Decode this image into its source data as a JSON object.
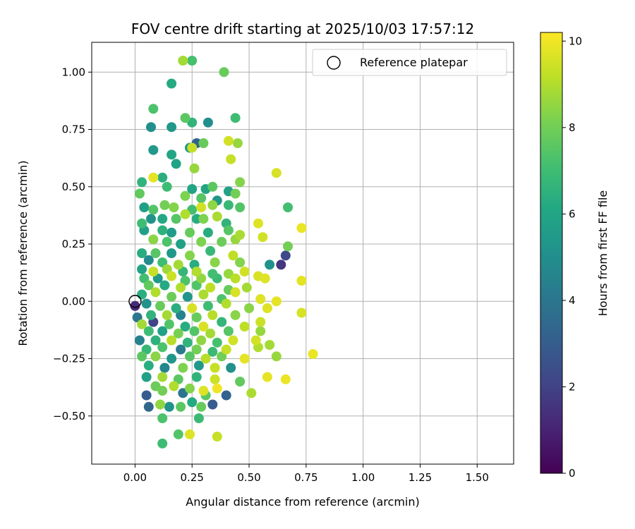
{
  "chart_data": {
    "type": "scatter",
    "title": "FOV centre drift starting at 2025/10/03 17:57:12",
    "xlabel": "Angular distance from reference (arcmin)",
    "ylabel": "Rotation from reference (arcmin)",
    "xlim": [
      -0.19,
      1.66
    ],
    "ylim": [
      -0.71,
      1.13
    ],
    "xticks": [
      0.0,
      0.25,
      0.5,
      0.75,
      1.0,
      1.25,
      1.5
    ],
    "xtick_labels": [
      "0.00",
      "0.25",
      "0.50",
      "0.75",
      "1.00",
      "1.25",
      "1.50"
    ],
    "yticks": [
      -0.5,
      -0.25,
      0.0,
      0.25,
      0.5,
      0.75,
      1.0
    ],
    "ytick_labels": [
      "−0.50",
      "−0.25",
      "0.00",
      "0.25",
      "0.50",
      "0.75",
      "1.00"
    ],
    "grid": true,
    "legend": {
      "position": "top-right",
      "entries": [
        "Reference platepar"
      ]
    },
    "reference_point": {
      "x": 0.0,
      "y": 0.0,
      "label": "Reference platepar"
    },
    "colorbar": {
      "label": "Hours from first FF file",
      "range": [
        0,
        10.2
      ],
      "ticks": [
        0,
        2,
        4,
        6,
        8,
        10
      ],
      "tick_labels": [
        "0",
        "2",
        "4",
        "6",
        "8",
        "10"
      ],
      "colormap": "viridis"
    },
    "point_columns": [
      "x",
      "y",
      "hours"
    ],
    "points": [
      [
        0.21,
        1.05,
        8.8
      ],
      [
        0.25,
        1.05,
        7.2
      ],
      [
        0.39,
        1.0,
        7.8
      ],
      [
        0.16,
        0.95,
        6.2
      ],
      [
        0.08,
        0.84,
        7.3
      ],
      [
        0.22,
        0.8,
        7.6
      ],
      [
        0.44,
        0.8,
        7.0
      ],
      [
        0.25,
        0.78,
        6.6
      ],
      [
        0.32,
        0.78,
        5.0
      ],
      [
        0.07,
        0.76,
        5.0
      ],
      [
        0.16,
        0.76,
        5.4
      ],
      [
        0.27,
        0.69,
        3.2
      ],
      [
        0.3,
        0.69,
        7.8
      ],
      [
        0.41,
        0.7,
        9.5
      ],
      [
        0.45,
        0.69,
        8.6
      ],
      [
        0.24,
        0.67,
        5.3
      ],
      [
        0.25,
        0.67,
        9.3
      ],
      [
        0.08,
        0.66,
        5.4
      ],
      [
        0.16,
        0.64,
        6.0
      ],
      [
        0.42,
        0.62,
        9.3
      ],
      [
        0.18,
        0.6,
        5.9
      ],
      [
        0.26,
        0.58,
        8.6
      ],
      [
        0.62,
        0.56,
        9.6
      ],
      [
        0.08,
        0.54,
        9.8
      ],
      [
        0.12,
        0.54,
        6.4
      ],
      [
        0.03,
        0.52,
        6.6
      ],
      [
        0.14,
        0.5,
        7.0
      ],
      [
        0.25,
        0.49,
        6.0
      ],
      [
        0.31,
        0.49,
        6.0
      ],
      [
        0.34,
        0.5,
        7.6
      ],
      [
        0.46,
        0.52,
        8.3
      ],
      [
        0.41,
        0.48,
        5.8
      ],
      [
        0.44,
        0.47,
        8.0
      ],
      [
        0.02,
        0.47,
        7.7
      ],
      [
        0.22,
        0.46,
        8.2
      ],
      [
        0.29,
        0.45,
        7.5
      ],
      [
        0.36,
        0.44,
        5.3
      ],
      [
        0.04,
        0.41,
        5.7
      ],
      [
        0.08,
        0.4,
        7.4
      ],
      [
        0.13,
        0.42,
        8.0
      ],
      [
        0.17,
        0.41,
        8.3
      ],
      [
        0.25,
        0.4,
        7.1
      ],
      [
        0.29,
        0.41,
        9.5
      ],
      [
        0.34,
        0.42,
        8.5
      ],
      [
        0.41,
        0.42,
        6.8
      ],
      [
        0.46,
        0.41,
        7.4
      ],
      [
        0.67,
        0.41,
        7.1
      ],
      [
        0.03,
        0.34,
        7.0
      ],
      [
        0.07,
        0.36,
        5.2
      ],
      [
        0.12,
        0.36,
        6.1
      ],
      [
        0.18,
        0.36,
        7.5
      ],
      [
        0.22,
        0.38,
        9.0
      ],
      [
        0.27,
        0.36,
        6.3
      ],
      [
        0.3,
        0.36,
        8.2
      ],
      [
        0.36,
        0.37,
        8.9
      ],
      [
        0.4,
        0.34,
        6.6
      ],
      [
        0.54,
        0.34,
        9.7
      ],
      [
        0.73,
        0.32,
        9.9
      ],
      [
        0.04,
        0.31,
        5.7
      ],
      [
        0.12,
        0.31,
        6.5
      ],
      [
        0.16,
        0.3,
        5.6
      ],
      [
        0.24,
        0.3,
        7.8
      ],
      [
        0.32,
        0.3,
        6.3
      ],
      [
        0.41,
        0.31,
        7.5
      ],
      [
        0.46,
        0.29,
        8.9
      ],
      [
        0.56,
        0.28,
        9.5
      ],
      [
        0.08,
        0.27,
        8.4
      ],
      [
        0.14,
        0.26,
        7.3
      ],
      [
        0.2,
        0.25,
        5.8
      ],
      [
        0.29,
        0.26,
        8.2
      ],
      [
        0.38,
        0.26,
        7.9
      ],
      [
        0.44,
        0.27,
        8.6
      ],
      [
        0.67,
        0.24,
        8.0
      ],
      [
        0.03,
        0.21,
        6.3
      ],
      [
        0.09,
        0.21,
        7.5
      ],
      [
        0.16,
        0.21,
        5.4
      ],
      [
        0.24,
        0.2,
        8.3
      ],
      [
        0.33,
        0.22,
        6.8
      ],
      [
        0.43,
        0.2,
        9.2
      ],
      [
        0.66,
        0.2,
        2.2
      ],
      [
        0.06,
        0.18,
        4.8
      ],
      [
        0.12,
        0.17,
        7.0
      ],
      [
        0.19,
        0.16,
        8.8
      ],
      [
        0.26,
        0.16,
        6.3
      ],
      [
        0.35,
        0.17,
        8.4
      ],
      [
        0.46,
        0.17,
        8.3
      ],
      [
        0.59,
        0.16,
        5.1
      ],
      [
        0.64,
        0.16,
        1.6
      ],
      [
        0.03,
        0.14,
        5.9
      ],
      [
        0.08,
        0.13,
        9.3
      ],
      [
        0.14,
        0.14,
        8.7
      ],
      [
        0.21,
        0.13,
        6.7
      ],
      [
        0.27,
        0.13,
        9.0
      ],
      [
        0.34,
        0.12,
        7.1
      ],
      [
        0.41,
        0.12,
        8.6
      ],
      [
        0.48,
        0.13,
        9.5
      ],
      [
        0.04,
        0.1,
        7.1
      ],
      [
        0.1,
        0.1,
        5.5
      ],
      [
        0.16,
        0.11,
        9.4
      ],
      [
        0.22,
        0.09,
        7.3
      ],
      [
        0.29,
        0.1,
        8.5
      ],
      [
        0.36,
        0.1,
        6.9
      ],
      [
        0.44,
        0.1,
        9.1
      ],
      [
        0.54,
        0.11,
        9.6
      ],
      [
        0.57,
        0.1,
        9.7
      ],
      [
        0.73,
        0.09,
        9.8
      ],
      [
        0.06,
        0.07,
        7.7
      ],
      [
        0.13,
        0.07,
        6.2
      ],
      [
        0.2,
        0.06,
        9.0
      ],
      [
        0.27,
        0.07,
        7.4
      ],
      [
        0.33,
        0.06,
        9.2
      ],
      [
        0.41,
        0.05,
        7.8
      ],
      [
        0.49,
        0.06,
        8.8
      ],
      [
        0.03,
        0.03,
        6.4
      ],
      [
        0.09,
        0.04,
        9.0
      ],
      [
        0.16,
        0.02,
        7.9
      ],
      [
        0.23,
        0.02,
        5.3
      ],
      [
        0.3,
        0.03,
        8.9
      ],
      [
        0.38,
        0.01,
        7.3
      ],
      [
        0.44,
        0.04,
        9.6
      ],
      [
        0.55,
        0.01,
        9.7
      ],
      [
        0.62,
        0.0,
        9.8
      ],
      [
        0.0,
        -0.02,
        1.2
      ],
      [
        0.05,
        -0.01,
        5.2
      ],
      [
        0.11,
        -0.02,
        7.8
      ],
      [
        0.18,
        -0.03,
        6.4
      ],
      [
        0.25,
        -0.03,
        9.6
      ],
      [
        0.32,
        -0.02,
        7.0
      ],
      [
        0.4,
        -0.01,
        9.0
      ],
      [
        0.5,
        -0.03,
        8.4
      ],
      [
        0.58,
        -0.03,
        9.7
      ],
      [
        0.73,
        -0.05,
        9.6
      ],
      [
        0.01,
        -0.07,
        4.0
      ],
      [
        0.07,
        -0.06,
        6.6
      ],
      [
        0.14,
        -0.06,
        8.8
      ],
      [
        0.2,
        -0.06,
        4.5
      ],
      [
        0.27,
        -0.07,
        7.8
      ],
      [
        0.34,
        -0.06,
        9.1
      ],
      [
        0.44,
        -0.06,
        8.4
      ],
      [
        0.03,
        -0.1,
        8.8
      ],
      [
        0.08,
        -0.09,
        2.0
      ],
      [
        0.15,
        -0.1,
        7.4
      ],
      [
        0.22,
        -0.11,
        6.3
      ],
      [
        0.3,
        -0.11,
        9.6
      ],
      [
        0.38,
        -0.09,
        6.7
      ],
      [
        0.48,
        -0.11,
        9.2
      ],
      [
        0.55,
        -0.09,
        9.4
      ],
      [
        0.06,
        -0.13,
        7.0
      ],
      [
        0.12,
        -0.13,
        5.8
      ],
      [
        0.19,
        -0.14,
        8.1
      ],
      [
        0.26,
        -0.13,
        7.4
      ],
      [
        0.33,
        -0.14,
        8.8
      ],
      [
        0.41,
        -0.13,
        7.5
      ],
      [
        0.55,
        -0.13,
        8.6
      ],
      [
        0.02,
        -0.17,
        4.5
      ],
      [
        0.09,
        -0.17,
        6.5
      ],
      [
        0.16,
        -0.17,
        9.1
      ],
      [
        0.23,
        -0.18,
        6.6
      ],
      [
        0.29,
        -0.17,
        8.5
      ],
      [
        0.36,
        -0.18,
        7.2
      ],
      [
        0.43,
        -0.17,
        9.5
      ],
      [
        0.53,
        -0.17,
        9.5
      ],
      [
        0.59,
        -0.19,
        8.8
      ],
      [
        0.05,
        -0.21,
        6.8
      ],
      [
        0.12,
        -0.2,
        7.3
      ],
      [
        0.2,
        -0.21,
        4.2
      ],
      [
        0.27,
        -0.21,
        8.0
      ],
      [
        0.34,
        -0.22,
        6.9
      ],
      [
        0.4,
        -0.21,
        9.3
      ],
      [
        0.54,
        -0.2,
        9.0
      ],
      [
        0.03,
        -0.24,
        7.6
      ],
      [
        0.09,
        -0.24,
        8.4
      ],
      [
        0.16,
        -0.25,
        5.3
      ],
      [
        0.24,
        -0.24,
        7.5
      ],
      [
        0.31,
        -0.25,
        9.1
      ],
      [
        0.38,
        -0.24,
        8.0
      ],
      [
        0.48,
        -0.25,
        9.8
      ],
      [
        0.62,
        -0.24,
        8.6
      ],
      [
        0.78,
        -0.23,
        9.9
      ],
      [
        0.06,
        -0.28,
        6.4
      ],
      [
        0.13,
        -0.29,
        4.6
      ],
      [
        0.21,
        -0.29,
        8.2
      ],
      [
        0.28,
        -0.28,
        5.4
      ],
      [
        0.35,
        -0.29,
        9.3
      ],
      [
        0.42,
        -0.29,
        5.1
      ],
      [
        0.05,
        -0.33,
        5.8
      ],
      [
        0.12,
        -0.33,
        8.8
      ],
      [
        0.19,
        -0.34,
        7.6
      ],
      [
        0.27,
        -0.33,
        6.6
      ],
      [
        0.35,
        -0.34,
        9.4
      ],
      [
        0.46,
        -0.35,
        7.7
      ],
      [
        0.58,
        -0.33,
        9.8
      ],
      [
        0.66,
        -0.34,
        9.9
      ],
      [
        0.09,
        -0.37,
        7.9
      ],
      [
        0.17,
        -0.37,
        9.0
      ],
      [
        0.24,
        -0.38,
        8.3
      ],
      [
        0.3,
        -0.39,
        9.7
      ],
      [
        0.36,
        -0.38,
        10.0
      ],
      [
        0.51,
        -0.4,
        8.9
      ],
      [
        0.05,
        -0.41,
        3.0
      ],
      [
        0.12,
        -0.39,
        8.0
      ],
      [
        0.21,
        -0.4,
        4.0
      ],
      [
        0.31,
        -0.41,
        7.6
      ],
      [
        0.4,
        -0.41,
        3.2
      ],
      [
        0.06,
        -0.46,
        3.4
      ],
      [
        0.11,
        -0.45,
        8.5
      ],
      [
        0.15,
        -0.46,
        5.2
      ],
      [
        0.2,
        -0.46,
        7.6
      ],
      [
        0.25,
        -0.44,
        6.2
      ],
      [
        0.34,
        -0.45,
        3.0
      ],
      [
        0.29,
        -0.46,
        7.8
      ],
      [
        0.12,
        -0.51,
        7.3
      ],
      [
        0.28,
        -0.51,
        6.9
      ],
      [
        0.19,
        -0.58,
        7.4
      ],
      [
        0.24,
        -0.58,
        9.7
      ],
      [
        0.36,
        -0.59,
        9.3
      ],
      [
        0.12,
        -0.62,
        7.0
      ]
    ]
  }
}
